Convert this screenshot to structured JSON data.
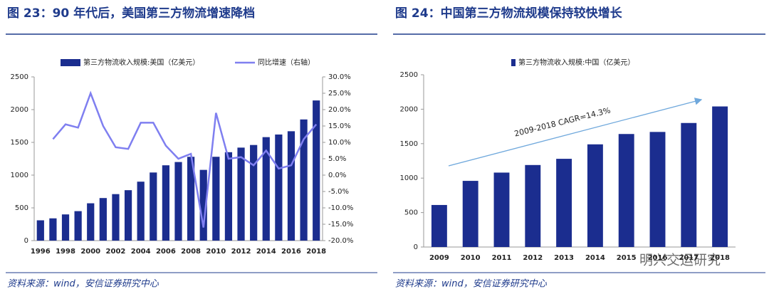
{
  "chart_data": [
    {
      "type": "bar",
      "title": "图 23：90 年代后，美国第三方物流增速降档",
      "source": "资料来源：wind，安信证券研究中心",
      "categories": [
        "1996",
        null,
        "1998",
        null,
        "2000",
        null,
        "2002",
        null,
        "2004",
        null,
        "2006",
        null,
        "2008",
        null,
        "2010",
        null,
        "2012",
        null,
        "2014",
        null,
        "2016",
        null,
        "2018"
      ],
      "series": [
        {
          "name": "第三方物流收入规模:美国（亿美元）",
          "color": "#1b2d8f",
          "values": [
            310,
            340,
            400,
            450,
            570,
            650,
            710,
            770,
            900,
            1040,
            1150,
            1200,
            1280,
            1080,
            1280,
            1350,
            1420,
            1460,
            1580,
            1620,
            1670,
            1850,
            2140
          ]
        },
        {
          "name": "同比增速（右轴）",
          "type": "line",
          "axis": "y2",
          "color": "#7f7ff0",
          "values": [
            null,
            11,
            15.5,
            14.5,
            25,
            15,
            8.5,
            8,
            16,
            16,
            9,
            5,
            6.5,
            -16,
            19,
            5,
            5.5,
            3,
            7.5,
            2,
            3,
            11,
            15.5
          ]
        }
      ],
      "ylim": [
        0,
        2500
      ],
      "yticks": [
        0,
        500,
        1000,
        1500,
        2000,
        2500
      ],
      "y2lim": [
        -20,
        30
      ],
      "y2ticks": [
        {
          "value": -20,
          "label": "-20.0%"
        },
        {
          "value": -15,
          "label": "-15.0%"
        },
        {
          "value": -10,
          "label": "-10.0%"
        },
        {
          "value": -5,
          "label": "-5.0%"
        },
        {
          "value": 0,
          "label": "0.0%"
        },
        {
          "value": 5,
          "label": "5.0%"
        },
        {
          "value": 10,
          "label": "10.0%"
        },
        {
          "value": 15,
          "label": "15.0%"
        },
        {
          "value": 20,
          "label": "20.0%"
        },
        {
          "value": 25,
          "label": "25.0%"
        },
        {
          "value": 30,
          "label": "30.0%"
        }
      ],
      "grid": false
    },
    {
      "type": "bar",
      "title": "图 24：中国第三方物流规模保持较快增长",
      "source": "资料来源：wind，安信证券研究中心",
      "categories": [
        "2009",
        "2010",
        "2011",
        "2012",
        "2013",
        "2014",
        "2015",
        "2016",
        "2017",
        "2018"
      ],
      "series": [
        {
          "name": "第三方物流收入规模:中国（亿美元）",
          "color": "#1b2d8f",
          "values": [
            610,
            960,
            1080,
            1190,
            1280,
            1490,
            1640,
            1670,
            1800,
            2040
          ]
        }
      ],
      "annotation": "2009-2018 CAGR=14.3%",
      "ylim": [
        0,
        2500
      ],
      "yticks": [
        0,
        500,
        1000,
        1500,
        2000,
        2500
      ],
      "grid": false
    }
  ],
  "watermark": "明兴交运研究"
}
